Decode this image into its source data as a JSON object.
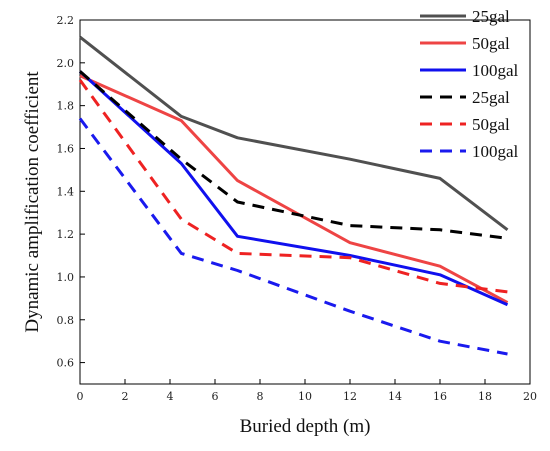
{
  "chart_data": {
    "type": "line",
    "title": "",
    "xlabel": "Buried depth (m)",
    "ylabel": "Dynamic amplification coefficient",
    "xlim": [
      0,
      20
    ],
    "ylim": [
      0.5,
      2.2
    ],
    "xticks": [
      0,
      2,
      4,
      6,
      8,
      10,
      12,
      14,
      16,
      18,
      20
    ],
    "yticks": [
      0.6,
      0.8,
      1.0,
      1.2,
      1.4,
      1.6,
      1.8,
      2.0,
      2.2
    ],
    "ytick_labels": [
      "0.6",
      "0.8",
      "1.0",
      "1.2",
      "1.4",
      "1.6",
      "1.8",
      "2.0",
      "2.2"
    ],
    "grid": false,
    "legend_position": "top-right",
    "series": [
      {
        "name": "25gal",
        "style": "solid",
        "color": "#505050",
        "x": [
          0,
          4.5,
          7,
          12,
          16,
          19
        ],
        "y": [
          2.12,
          1.75,
          1.65,
          1.55,
          1.46,
          1.22
        ]
      },
      {
        "name": "50gal",
        "style": "solid",
        "color": "#ee4444",
        "x": [
          0,
          4.5,
          7,
          12,
          16,
          19
        ],
        "y": [
          1.94,
          1.73,
          1.45,
          1.16,
          1.05,
          0.88
        ]
      },
      {
        "name": "100gal",
        "style": "solid",
        "color": "#1010ee",
        "x": [
          0,
          4.5,
          7,
          12,
          16,
          19
        ],
        "y": [
          1.96,
          1.53,
          1.19,
          1.1,
          1.01,
          0.87
        ]
      },
      {
        "name": "25gal",
        "style": "dashed",
        "color": "#000000",
        "x": [
          0,
          4.5,
          7,
          12,
          16,
          19
        ],
        "y": [
          1.96,
          1.55,
          1.35,
          1.24,
          1.22,
          1.18
        ]
      },
      {
        "name": "50gal",
        "style": "dashed",
        "color": "#ee2222",
        "x": [
          0,
          4.5,
          7,
          12,
          16,
          19
        ],
        "y": [
          1.92,
          1.27,
          1.11,
          1.09,
          0.97,
          0.93
        ]
      },
      {
        "name": "100gal",
        "style": "dashed",
        "color": "#1a1aee",
        "x": [
          0,
          4.5,
          7,
          12,
          16,
          19
        ],
        "y": [
          1.74,
          1.11,
          1.03,
          0.84,
          0.7,
          0.64
        ]
      }
    ]
  }
}
